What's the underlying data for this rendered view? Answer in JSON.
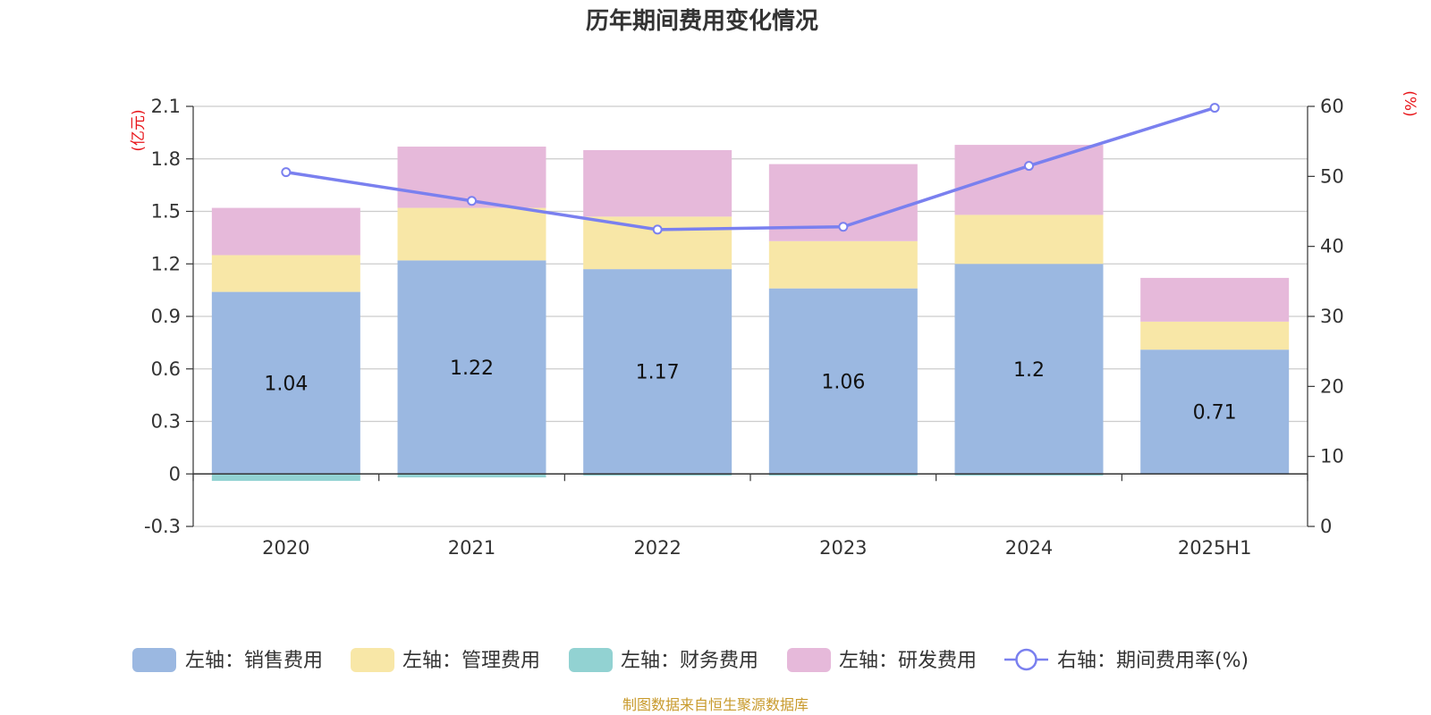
{
  "chart_data": {
    "type": "bar",
    "title": "历年期间费用变化情况",
    "left_axis_unit": "(亿元)",
    "right_axis_unit": "(%)",
    "categories": [
      "2020",
      "2021",
      "2022",
      "2023",
      "2024",
      "2025H1"
    ],
    "left_axis": {
      "min": -0.3,
      "max": 2.1,
      "ticks": [
        "2.1",
        "1.8",
        "1.5",
        "1.2",
        "0.9",
        "0.6",
        "0.3",
        "0",
        "-0.3"
      ]
    },
    "right_axis": {
      "min": 0,
      "max": 60,
      "ticks": [
        "60",
        "50",
        "40",
        "30",
        "20",
        "10",
        "0"
      ]
    },
    "series": [
      {
        "name": "左轴：销售费用",
        "type": "bar",
        "axis": "left",
        "color": "#9bb8e1",
        "values": [
          1.04,
          1.22,
          1.17,
          1.06,
          1.2,
          0.71
        ],
        "labels": [
          "1.04",
          "1.22",
          "1.17",
          "1.06",
          "1.2",
          "0.71"
        ]
      },
      {
        "name": "左轴：管理费用",
        "type": "bar",
        "axis": "left",
        "color": "#f8e7a7",
        "values": [
          0.21,
          0.3,
          0.3,
          0.27,
          0.28,
          0.16
        ]
      },
      {
        "name": "左轴：财务费用",
        "type": "bar",
        "axis": "left",
        "color": "#92d2d2",
        "values": [
          -0.04,
          -0.02,
          -0.01,
          -0.01,
          -0.01,
          0.0
        ]
      },
      {
        "name": "左轴：研发费用",
        "type": "bar",
        "axis": "left",
        "color": "#e6b9da",
        "values": [
          0.27,
          0.35,
          0.38,
          0.44,
          0.4,
          0.25
        ]
      },
      {
        "name": "右轴：期间费用率(%)",
        "type": "line",
        "axis": "right",
        "color": "#7a80ef",
        "values": [
          50.6,
          46.5,
          42.4,
          42.8,
          51.5,
          59.8
        ]
      }
    ],
    "grid": true,
    "legend_position": "bottom"
  },
  "source_note": "制图数据来自恒生聚源数据库"
}
